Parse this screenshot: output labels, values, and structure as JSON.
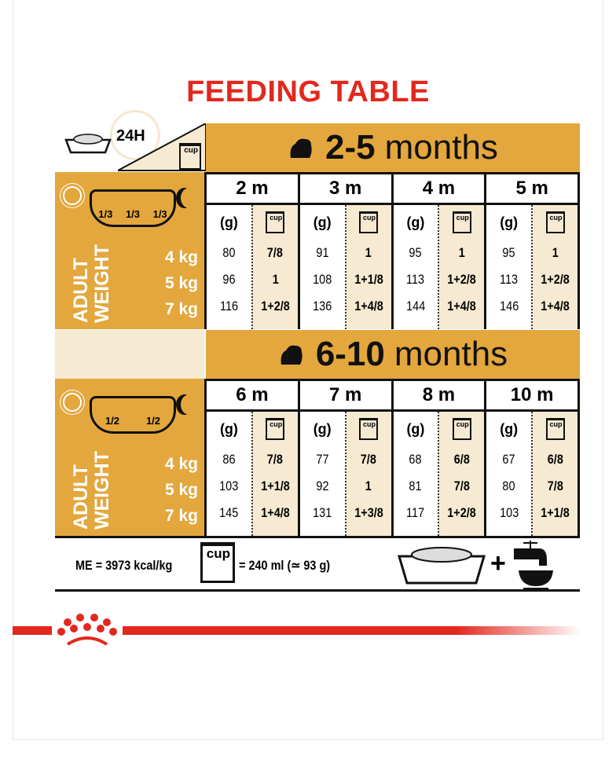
{
  "title": "FEEDING TABLE",
  "header": {
    "period_label": "24H",
    "cup_label": "cup"
  },
  "sections": [
    {
      "range": "2-5",
      "unit": "months",
      "split": [
        "1/3",
        "1/3",
        "1/3"
      ],
      "weights": [
        "4 kg",
        "5 kg",
        "7 kg"
      ],
      "adult_label": "ADULT",
      "weight_label": "WEIGHT",
      "columns": [
        {
          "month": "2 m",
          "grams": [
            "80",
            "96",
            "116"
          ],
          "cups": [
            "7/8",
            "1",
            "1+2/8"
          ]
        },
        {
          "month": "3 m",
          "grams": [
            "91",
            "108",
            "136"
          ],
          "cups": [
            "1",
            "1+1/8",
            "1+4/8"
          ]
        },
        {
          "month": "4 m",
          "grams": [
            "95",
            "113",
            "144"
          ],
          "cups": [
            "1",
            "1+2/8",
            "1+4/8"
          ]
        },
        {
          "month": "5 m",
          "grams": [
            "95",
            "113",
            "146"
          ],
          "cups": [
            "1",
            "1+2/8",
            "1+4/8"
          ]
        }
      ]
    },
    {
      "range": "6-10",
      "unit": "months",
      "split": [
        "1/2",
        "1/2"
      ],
      "weights": [
        "4 kg",
        "5 kg",
        "7 kg"
      ],
      "adult_label": "ADULT",
      "weight_label": "WEIGHT",
      "columns": [
        {
          "month": "6 m",
          "grams": [
            "86",
            "103",
            "145"
          ],
          "cups": [
            "7/8",
            "1+1/8",
            "1+4/8"
          ]
        },
        {
          "month": "7 m",
          "grams": [
            "77",
            "92",
            "131"
          ],
          "cups": [
            "7/8",
            "1",
            "1+3/8"
          ]
        },
        {
          "month": "8 m",
          "grams": [
            "68",
            "81",
            "117"
          ],
          "cups": [
            "6/8",
            "7/8",
            "1+2/8"
          ]
        },
        {
          "month": "10 m",
          "grams": [
            "67",
            "80",
            "103"
          ],
          "cups": [
            "6/8",
            "7/8",
            "1+1/8"
          ]
        }
      ]
    }
  ],
  "units": {
    "grams": "(g)",
    "cup": "cup"
  },
  "footer": {
    "energy": "ME = 3973 kcal/kg",
    "cup_label": "cup",
    "cup_equivalence": "= 240 ml (≃ 93 g)",
    "plus": "+"
  },
  "colors": {
    "gold": "#e3a73d",
    "cream": "#f6ead3",
    "red": "#e2281e"
  }
}
